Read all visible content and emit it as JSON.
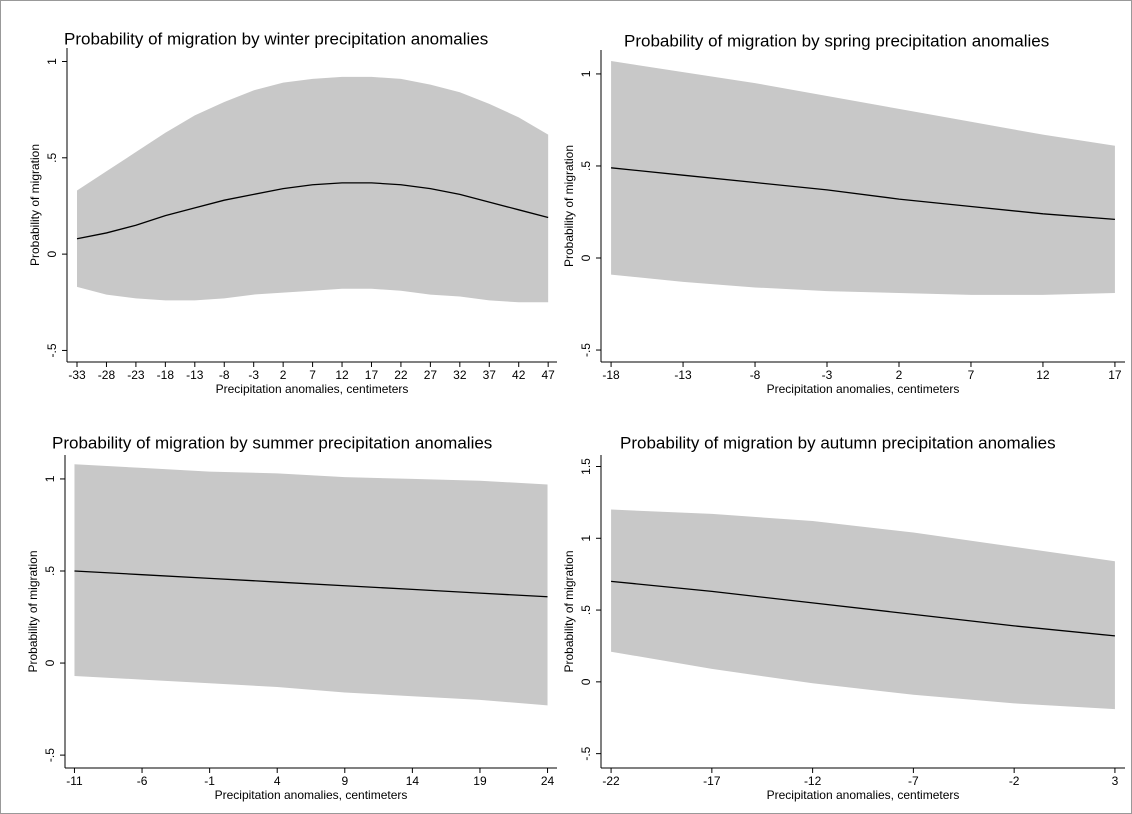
{
  "chart_data": [
    {
      "type": "line",
      "title": "Probability of migration by winter precipitation anomalies",
      "x_label": "Precipitation anomalies, centimeters",
      "y_label": "Probability of migration",
      "x": [
        -33,
        -28,
        -23,
        -18,
        -13,
        -8,
        -3,
        2,
        7,
        12,
        17,
        22,
        27,
        32,
        37,
        42,
        47
      ],
      "series": [
        {
          "color": "#000000",
          "band_color": "#c8c8c8",
          "values": [
            0.08,
            0.11,
            0.15,
            0.2,
            0.24,
            0.28,
            0.31,
            0.34,
            0.36,
            0.37,
            0.37,
            0.36,
            0.34,
            0.31,
            0.27,
            0.23,
            0.19
          ],
          "upper": [
            0.33,
            0.43,
            0.53,
            0.63,
            0.72,
            0.79,
            0.85,
            0.89,
            0.91,
            0.92,
            0.92,
            0.91,
            0.88,
            0.84,
            0.78,
            0.71,
            0.62
          ],
          "lower": [
            -0.17,
            -0.21,
            -0.23,
            -0.24,
            -0.24,
            -0.23,
            -0.21,
            -0.2,
            -0.19,
            -0.18,
            -0.18,
            -0.19,
            -0.21,
            -0.22,
            -0.24,
            -0.25,
            -0.25
          ]
        }
      ],
      "xlim": [
        -34.7,
        48.5
      ],
      "xticks": [
        -33,
        -28,
        -23,
        -18,
        -13,
        -8,
        -3,
        2,
        7,
        12,
        17,
        22,
        27,
        32,
        37,
        42,
        47
      ],
      "ylim": [
        -0.56,
        1.07
      ],
      "yticks": [
        {
          "value": -0.5,
          "label": "-.5"
        },
        0,
        {
          "value": 0.5,
          "label": ".5"
        },
        1
      ]
    },
    {
      "type": "line",
      "title": "Probability of migration by spring precipitation anomalies",
      "x_label": "Precipitation anomalies, centimeters",
      "y_label": "Probability of migration",
      "x": [
        -18,
        -13,
        -8,
        -3,
        2,
        7,
        12,
        17
      ],
      "series": [
        {
          "color": "#000000",
          "band_color": "#c8c8c8",
          "values": [
            0.49,
            0.45,
            0.41,
            0.37,
            0.32,
            0.28,
            0.24,
            0.21
          ],
          "upper": [
            1.07,
            1.01,
            0.95,
            0.88,
            0.81,
            0.74,
            0.67,
            0.61
          ],
          "lower": [
            -0.09,
            -0.13,
            -0.16,
            -0.18,
            -0.19,
            -0.2,
            -0.2,
            -0.19
          ]
        }
      ],
      "xlim": [
        -18.7,
        17.7
      ],
      "xticks": [
        -18,
        -13,
        -8,
        -3,
        2,
        7,
        12,
        17
      ],
      "ylim": [
        -0.565,
        1.13
      ],
      "yticks": [
        {
          "value": -0.5,
          "label": "-.5"
        },
        0,
        {
          "value": 0.5,
          "label": ".5"
        },
        1
      ]
    },
    {
      "type": "line",
      "title": "Probability of migration by summer precipitation anomalies",
      "x_label": "Precipitation anomalies, centimeters",
      "y_label": "Probability of migration",
      "x": [
        -11,
        -6,
        -1,
        4,
        9,
        14,
        19,
        24
      ],
      "series": [
        {
          "color": "#000000",
          "band_color": "#c8c8c8",
          "values": [
            0.5,
            0.48,
            0.46,
            0.44,
            0.42,
            0.4,
            0.38,
            0.36
          ],
          "upper": [
            1.08,
            1.06,
            1.04,
            1.03,
            1.01,
            1.0,
            0.99,
            0.97
          ],
          "lower": [
            -0.07,
            -0.09,
            -0.11,
            -0.13,
            -0.16,
            -0.18,
            -0.2,
            -0.23
          ]
        }
      ],
      "xlim": [
        -11.7,
        24.7
      ],
      "xticks": [
        -11,
        -6,
        -1,
        4,
        9,
        14,
        19,
        24
      ],
      "ylim": [
        -0.57,
        1.13
      ],
      "yticks": [
        {
          "value": -0.5,
          "label": "-.5"
        },
        0,
        {
          "value": 0.5,
          "label": ".5"
        },
        1
      ]
    },
    {
      "type": "line",
      "title": "Probability of migration by autumn precipitation anomalies",
      "x_label": "Precipitation anomalies, centimeters",
      "y_label": "Probability of migration",
      "x": [
        -22,
        -17,
        -12,
        -7,
        -2,
        3
      ],
      "series": [
        {
          "color": "#000000",
          "band_color": "#c8c8c8",
          "values": [
            0.7,
            0.63,
            0.55,
            0.47,
            0.39,
            0.32
          ],
          "upper": [
            1.2,
            1.17,
            1.12,
            1.04,
            0.94,
            0.84
          ],
          "lower": [
            0.21,
            0.09,
            -0.01,
            -0.09,
            -0.15,
            -0.19
          ]
        }
      ],
      "xlim": [
        -22.5,
        3.5
      ],
      "xticks": [
        -22,
        -17,
        -12,
        -7,
        -2,
        3
      ],
      "ylim": [
        -0.6,
        1.58
      ],
      "yticks": [
        {
          "value": -0.5,
          "label": "-.5"
        },
        0,
        {
          "value": 0.5,
          "label": ".5"
        },
        1,
        1.5
      ]
    }
  ]
}
